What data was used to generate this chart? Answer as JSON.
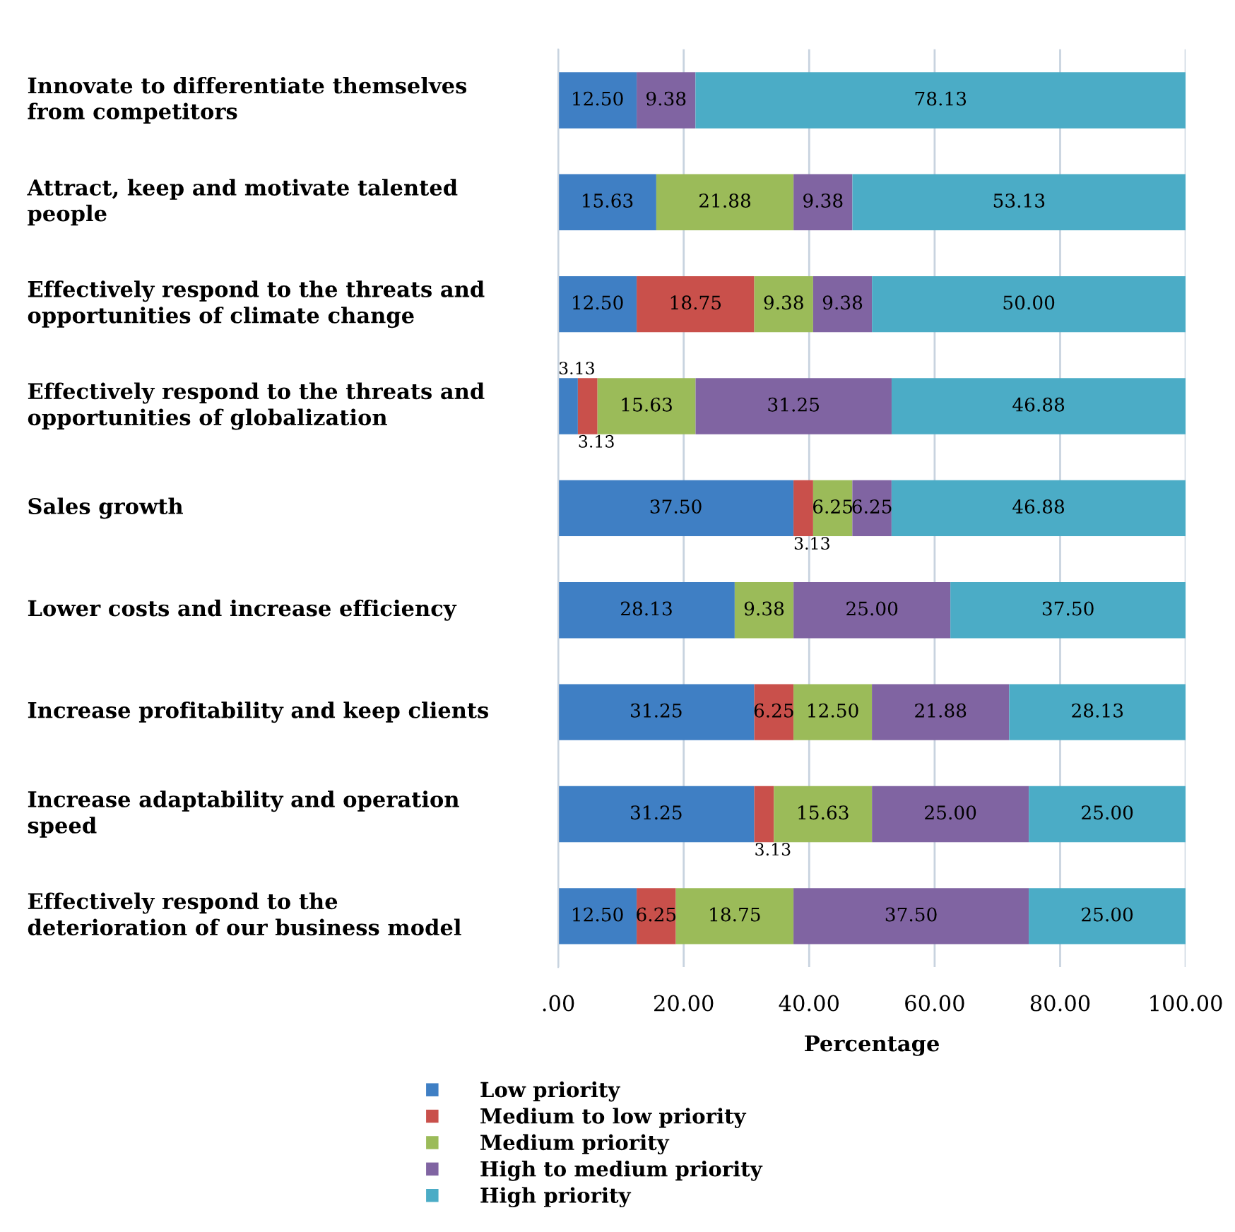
{
  "chart_data": {
    "type": "bar",
    "orientation": "horizontal",
    "stacked": true,
    "categories": [
      "Innovate to differentiate themselves\nfrom competitors",
      "Attract, keep and motivate talented\npeople",
      "Effectively respond to the threats and\nopportunities of climate change",
      "Effectively respond to the threats and\nopportunities of globalization",
      "Sales growth",
      "Lower costs and increase efficiency",
      "Increase profitability and keep clients",
      "Increase adaptability and operation\nspeed",
      "Effectively respond to the\ndeterioration of our business model"
    ],
    "series": [
      {
        "name": "Low priority",
        "color": "#3f7fc4",
        "values": [
          12.5,
          15.63,
          12.5,
          3.13,
          37.5,
          28.13,
          31.25,
          31.25,
          12.5
        ],
        "value_labels": [
          "12.50",
          "15.63",
          "12.50",
          "3.13",
          "37.50",
          "28.13",
          "31.25",
          "31.25",
          "12.50"
        ]
      },
      {
        "name": "Medium to low priority",
        "color": "#c9504b",
        "values": [
          0,
          0,
          18.75,
          3.13,
          3.13,
          0,
          6.25,
          3.13,
          6.25
        ],
        "value_labels": [
          null,
          null,
          "18.75",
          "3.13",
          "3.13",
          null,
          "6.25",
          "3.13",
          "6.25"
        ]
      },
      {
        "name": "Medium priority",
        "color": "#9bbb59",
        "values": [
          0,
          21.88,
          9.38,
          15.63,
          6.25,
          9.38,
          12.5,
          15.63,
          18.75
        ],
        "value_labels": [
          null,
          "21.88",
          "9.38",
          "15.63",
          "6.25",
          "9.38",
          "12.50",
          "15.63",
          "18.75"
        ]
      },
      {
        "name": "High to medium priority",
        "color": "#8064a2",
        "values": [
          9.38,
          9.38,
          9.38,
          31.25,
          6.25,
          25.0,
          21.88,
          25.0,
          37.5
        ],
        "value_labels": [
          "9.38",
          "9.38",
          "9.38",
          "31.25",
          "6.25",
          "25.00",
          "21.88",
          "25.00",
          "37.50"
        ]
      },
      {
        "name": "High priority",
        "color": "#4bacc6",
        "values": [
          78.13,
          53.13,
          50.0,
          46.88,
          46.88,
          37.5,
          28.13,
          25.0,
          25.0
        ],
        "value_labels": [
          "78.13",
          "53.13",
          "50.00",
          "46.88",
          "46.88",
          "37.50",
          "28.13",
          "25.00",
          "25.00"
        ]
      }
    ],
    "xlim": [
      0,
      100
    ],
    "xticks": [
      {
        "value": 0,
        "label": ".00"
      },
      {
        "value": 20,
        "label": "20.00"
      },
      {
        "value": 40,
        "label": "40.00"
      },
      {
        "value": 60,
        "label": "60.00"
      },
      {
        "value": 80,
        "label": "80.00"
      },
      {
        "value": 100,
        "label": "100.00"
      }
    ],
    "xlabel": "Percentage",
    "grid": "x",
    "legend": "bottom left"
  }
}
